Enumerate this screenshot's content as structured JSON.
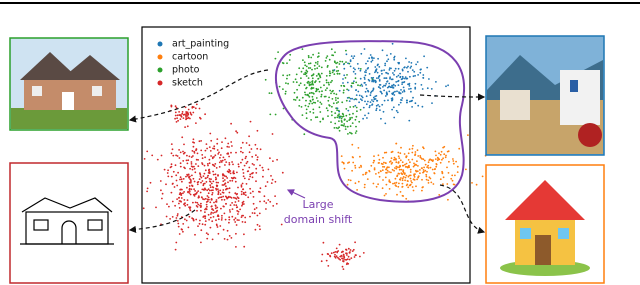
{
  "legend": [
    {
      "label": "art_painting",
      "color": "#1f77b4"
    },
    {
      "label": "cartoon",
      "color": "#ff7f0e"
    },
    {
      "label": "photo",
      "color": "#2ca02c"
    },
    {
      "label": "sketch",
      "color": "#d62728"
    }
  ],
  "annotation": {
    "line1": "Large",
    "line2": "domain shift"
  }
}
